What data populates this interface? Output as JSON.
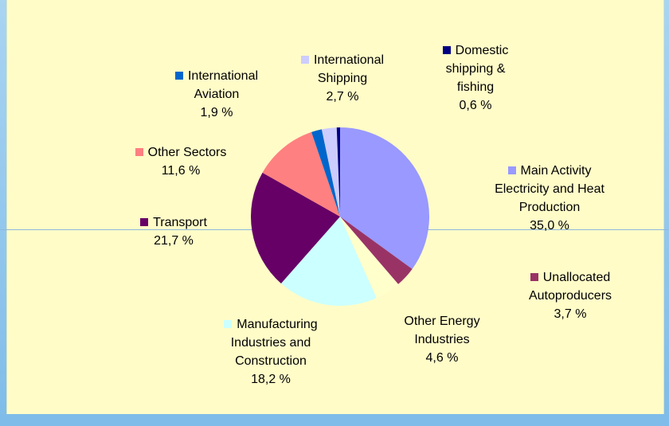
{
  "chart_data": {
    "type": "pie",
    "categories": [
      "Main Activity Electricity and Heat Production",
      "Unallocated Autoproducers",
      "Other Energy Industries",
      "Manufacturing Industries and Construction",
      "Transport",
      "Other Sectors",
      "International Aviation",
      "International Shipping",
      "Domestic shipping & fishing"
    ],
    "values": [
      35.0,
      3.7,
      4.6,
      18.2,
      21.7,
      11.6,
      1.9,
      2.7,
      0.6
    ],
    "value_labels": [
      "35,0 %",
      "3,7 %",
      "4,6 %",
      "18,2 %",
      "21,7 %",
      "11,6 %",
      "1,9 %",
      "2,7 %",
      "0,6 %"
    ],
    "colors": [
      "#9999ff",
      "#993366",
      "#ffffcc",
      "#ccffff",
      "#660066",
      "#ff8080",
      "#0066cc",
      "#ccccff",
      "#000080"
    ]
  }
}
